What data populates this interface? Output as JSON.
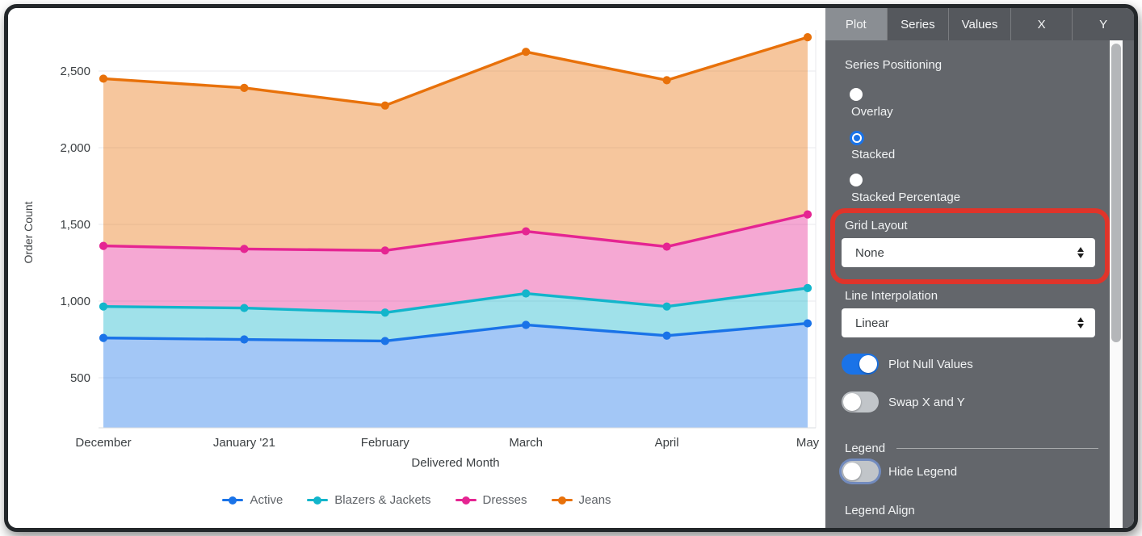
{
  "colors": {
    "accent_blue": "#1a73e8",
    "annotation_red": "#e0342a",
    "panel_bg": "#63666b",
    "tabbar_bg": "#55585d",
    "active_tab_bg": "#8a8e93",
    "grid_line": "#e8eaed",
    "axis_line": "#dadce0",
    "axis_text": "#3c4043",
    "legend_text": "#5f6368"
  },
  "chart_data": {
    "type": "area",
    "stacking": "stacked",
    "title": "",
    "xlabel": "Delivered Month",
    "ylabel": "Order Count",
    "categories": [
      "December",
      "January '21",
      "February",
      "March",
      "April",
      "May"
    ],
    "series": [
      {
        "name": "Active",
        "color": "#1a73e8",
        "values": [
          760,
          750,
          740,
          845,
          775,
          855
        ]
      },
      {
        "name": "Blazers & Jackets",
        "color": "#12b5cb",
        "values": [
          205,
          205,
          185,
          205,
          190,
          230
        ]
      },
      {
        "name": "Dresses",
        "color": "#e52592",
        "values": [
          395,
          385,
          405,
          405,
          390,
          480
        ]
      },
      {
        "name": "Jeans",
        "color": "#e8710a",
        "values": [
          1090,
          1050,
          945,
          1170,
          1085,
          1155
        ]
      }
    ],
    "y_ticks": [
      {
        "value": 500,
        "label": "500"
      },
      {
        "value": 1000,
        "label": "1,000"
      },
      {
        "value": 1500,
        "label": "1,500"
      },
      {
        "value": 2000,
        "label": "2,000"
      },
      {
        "value": 2500,
        "label": "2,500"
      }
    ],
    "ylim": [
      174,
      2726
    ],
    "grid": "horizontal",
    "legend_position": "bottom"
  },
  "panel": {
    "tabs": [
      {
        "label": "Plot",
        "active": true
      },
      {
        "label": "Series",
        "active": false
      },
      {
        "label": "Values",
        "active": false
      },
      {
        "label": "X",
        "active": false
      },
      {
        "label": "Y",
        "active": false
      }
    ],
    "series_positioning": {
      "label": "Series Positioning",
      "options": [
        {
          "label": "Overlay",
          "selected": false
        },
        {
          "label": "Stacked",
          "selected": true
        },
        {
          "label": "Stacked Percentage",
          "selected": false
        }
      ]
    },
    "grid_layout": {
      "label": "Grid Layout",
      "value": "None"
    },
    "line_interpolation": {
      "label": "Line Interpolation",
      "value": "Linear"
    },
    "toggles": [
      {
        "label": "Plot Null Values",
        "on": true
      },
      {
        "label": "Swap X and Y",
        "on": false
      }
    ],
    "legend_section": {
      "heading": "Legend",
      "hide_legend": {
        "label": "Hide Legend",
        "on": false
      },
      "legend_align_label": "Legend Align"
    },
    "annotation": {
      "highlighted_control": "Grid Layout"
    }
  }
}
